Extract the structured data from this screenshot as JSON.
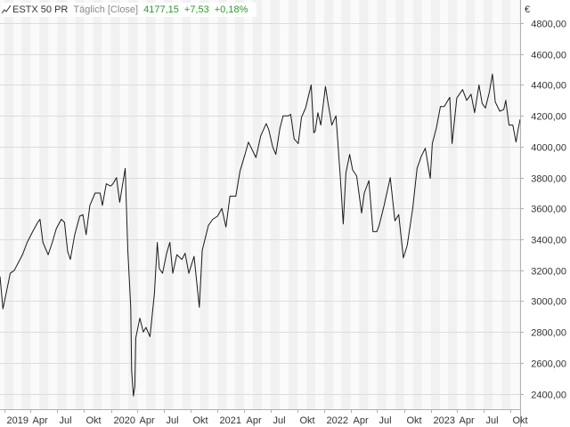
{
  "header": {
    "symbol": "ESTX 50 PR",
    "interval": "Täglich [Close]",
    "last": "4177,15",
    "change": "+7,53",
    "change_pct": "+0,18%",
    "change_color": "#2e9b2e"
  },
  "colors": {
    "line": "#1a1a1a",
    "band_light": "#fafafa",
    "band_dark": "#f1f1f1",
    "grid": "#dcdcdc",
    "frame": "#b0b0b0"
  },
  "chart_data": {
    "type": "line",
    "title": "",
    "xlabel": "",
    "ylabel": "",
    "unit": "€",
    "ylim": [
      2300,
      4950
    ],
    "xlim": [
      "2018-12-17",
      "2023-11-03"
    ],
    "yticks": [
      {
        "value": 2400,
        "label": "2400,00"
      },
      {
        "value": 2600,
        "label": "2600,00"
      },
      {
        "value": 2800,
        "label": "2800,00"
      },
      {
        "value": 3000,
        "label": "3000,00"
      },
      {
        "value": 3200,
        "label": "3200,00"
      },
      {
        "value": 3400,
        "label": "3400,00"
      },
      {
        "value": 3600,
        "label": "3600,00"
      },
      {
        "value": 3800,
        "label": "3800,00"
      },
      {
        "value": 4000,
        "label": "4000,00"
      },
      {
        "value": 4200,
        "label": "4200,00"
      },
      {
        "value": 4400,
        "label": "4400,00"
      },
      {
        "value": 4600,
        "label": "4600,00"
      },
      {
        "value": 4800,
        "label": "4800,00"
      }
    ],
    "xticks": [
      {
        "date": "2019-01-01",
        "label": "2019"
      },
      {
        "date": "2019-04-01",
        "label": "Apr"
      },
      {
        "date": "2019-07-01",
        "label": "Jul"
      },
      {
        "date": "2019-10-01",
        "label": "Okt"
      },
      {
        "date": "2020-01-01",
        "label": "2020"
      },
      {
        "date": "2020-04-01",
        "label": "Apr"
      },
      {
        "date": "2020-07-01",
        "label": "Jul"
      },
      {
        "date": "2020-10-01",
        "label": "Okt"
      },
      {
        "date": "2021-01-01",
        "label": "2021"
      },
      {
        "date": "2021-04-01",
        "label": "Apr"
      },
      {
        "date": "2021-07-01",
        "label": "Jul"
      },
      {
        "date": "2021-10-01",
        "label": "Okt"
      },
      {
        "date": "2022-01-01",
        "label": "2022"
      },
      {
        "date": "2022-04-01",
        "label": "Apr"
      },
      {
        "date": "2022-07-01",
        "label": "Jul"
      },
      {
        "date": "2022-10-01",
        "label": "Okt"
      },
      {
        "date": "2023-01-01",
        "label": "2023"
      },
      {
        "date": "2023-04-01",
        "label": "Apr"
      },
      {
        "date": "2023-07-01",
        "label": "Jul"
      },
      {
        "date": "2023-10-01",
        "label": "Okt"
      }
    ],
    "grid": true,
    "series": [
      {
        "name": "",
        "points": [
          [
            "2018-12-17",
            3160
          ],
          [
            "2018-12-27",
            2950
          ],
          [
            "2019-01-07",
            3050
          ],
          [
            "2019-01-21",
            3180
          ],
          [
            "2019-02-04",
            3200
          ],
          [
            "2019-02-18",
            3250
          ],
          [
            "2019-03-04",
            3300
          ],
          [
            "2019-03-20",
            3380
          ],
          [
            "2019-04-08",
            3450
          ],
          [
            "2019-04-25",
            3510
          ],
          [
            "2019-05-03",
            3530
          ],
          [
            "2019-05-13",
            3380
          ],
          [
            "2019-05-31",
            3300
          ],
          [
            "2019-06-14",
            3380
          ],
          [
            "2019-06-28",
            3470
          ],
          [
            "2019-07-15",
            3530
          ],
          [
            "2019-07-26",
            3510
          ],
          [
            "2019-08-06",
            3320
          ],
          [
            "2019-08-15",
            3270
          ],
          [
            "2019-08-30",
            3430
          ],
          [
            "2019-09-16",
            3550
          ],
          [
            "2019-09-27",
            3560
          ],
          [
            "2019-10-08",
            3430
          ],
          [
            "2019-10-21",
            3620
          ],
          [
            "2019-11-08",
            3700
          ],
          [
            "2019-11-25",
            3700
          ],
          [
            "2019-12-03",
            3620
          ],
          [
            "2019-12-16",
            3760
          ],
          [
            "2019-12-31",
            3745
          ],
          [
            "2020-01-08",
            3760
          ],
          [
            "2020-01-20",
            3800
          ],
          [
            "2020-01-31",
            3640
          ],
          [
            "2020-02-19",
            3860
          ],
          [
            "2020-02-28",
            3330
          ],
          [
            "2020-03-09",
            2960
          ],
          [
            "2020-03-12",
            2550
          ],
          [
            "2020-03-18",
            2385
          ],
          [
            "2020-03-23",
            2450
          ],
          [
            "2020-03-26",
            2760
          ],
          [
            "2020-04-09",
            2890
          ],
          [
            "2020-04-21",
            2800
          ],
          [
            "2020-04-30",
            2830
          ],
          [
            "2020-05-14",
            2770
          ],
          [
            "2020-05-29",
            3050
          ],
          [
            "2020-06-08",
            3380
          ],
          [
            "2020-06-15",
            3210
          ],
          [
            "2020-06-26",
            3180
          ],
          [
            "2020-07-10",
            3310
          ],
          [
            "2020-07-21",
            3380
          ],
          [
            "2020-07-31",
            3180
          ],
          [
            "2020-08-14",
            3300
          ],
          [
            "2020-08-31",
            3270
          ],
          [
            "2020-09-11",
            3310
          ],
          [
            "2020-09-24",
            3180
          ],
          [
            "2020-10-12",
            3290
          ],
          [
            "2020-10-30",
            2960
          ],
          [
            "2020-11-09",
            3330
          ],
          [
            "2020-11-30",
            3490
          ],
          [
            "2020-12-15",
            3530
          ],
          [
            "2020-12-31",
            3550
          ],
          [
            "2021-01-15",
            3600
          ],
          [
            "2021-01-29",
            3480
          ],
          [
            "2021-02-12",
            3680
          ],
          [
            "2021-03-04",
            3680
          ],
          [
            "2021-03-18",
            3840
          ],
          [
            "2021-04-06",
            3960
          ],
          [
            "2021-04-16",
            4030
          ],
          [
            "2021-05-12",
            3930
          ],
          [
            "2021-05-28",
            4070
          ],
          [
            "2021-06-16",
            4150
          ],
          [
            "2021-06-25",
            4110
          ],
          [
            "2021-07-08",
            4000
          ],
          [
            "2021-07-19",
            3950
          ],
          [
            "2021-08-02",
            4120
          ],
          [
            "2021-08-13",
            4200
          ],
          [
            "2021-08-31",
            4200
          ],
          [
            "2021-09-08",
            4210
          ],
          [
            "2021-09-20",
            4050
          ],
          [
            "2021-10-04",
            4020
          ],
          [
            "2021-10-15",
            4190
          ],
          [
            "2021-10-29",
            4250
          ],
          [
            "2021-11-17",
            4400
          ],
          [
            "2021-11-26",
            4090
          ],
          [
            "2021-12-01",
            4100
          ],
          [
            "2021-12-10",
            4220
          ],
          [
            "2021-12-20",
            4140
          ],
          [
            "2022-01-05",
            4390
          ],
          [
            "2022-01-14",
            4280
          ],
          [
            "2022-01-27",
            4140
          ],
          [
            "2022-02-10",
            4200
          ],
          [
            "2022-02-24",
            3830
          ],
          [
            "2022-03-07",
            3500
          ],
          [
            "2022-03-16",
            3830
          ],
          [
            "2022-03-29",
            3950
          ],
          [
            "2022-04-08",
            3850
          ],
          [
            "2022-04-22",
            3810
          ],
          [
            "2022-05-09",
            3570
          ],
          [
            "2022-05-18",
            3700
          ],
          [
            "2022-06-03",
            3780
          ],
          [
            "2022-06-17",
            3450
          ],
          [
            "2022-06-30",
            3450
          ],
          [
            "2022-07-08",
            3490
          ],
          [
            "2022-07-25",
            3620
          ],
          [
            "2022-08-15",
            3800
          ],
          [
            "2022-08-31",
            3520
          ],
          [
            "2022-09-13",
            3560
          ],
          [
            "2022-09-29",
            3280
          ],
          [
            "2022-10-12",
            3360
          ],
          [
            "2022-10-31",
            3600
          ],
          [
            "2022-11-15",
            3860
          ],
          [
            "2022-11-30",
            3940
          ],
          [
            "2022-12-13",
            3990
          ],
          [
            "2022-12-30",
            3795
          ],
          [
            "2023-01-06",
            4020
          ],
          [
            "2023-01-20",
            4120
          ],
          [
            "2023-02-03",
            4260
          ],
          [
            "2023-02-16",
            4260
          ],
          [
            "2023-03-07",
            4320
          ],
          [
            "2023-03-15",
            4020
          ],
          [
            "2023-03-31",
            4315
          ],
          [
            "2023-04-20",
            4370
          ],
          [
            "2023-05-04",
            4300
          ],
          [
            "2023-05-19",
            4340
          ],
          [
            "2023-05-31",
            4220
          ],
          [
            "2023-06-15",
            4400
          ],
          [
            "2023-06-26",
            4280
          ],
          [
            "2023-07-07",
            4250
          ],
          [
            "2023-07-20",
            4350
          ],
          [
            "2023-07-31",
            4470
          ],
          [
            "2023-08-10",
            4290
          ],
          [
            "2023-08-25",
            4230
          ],
          [
            "2023-09-08",
            4240
          ],
          [
            "2023-09-15",
            4300
          ],
          [
            "2023-09-26",
            4140
          ],
          [
            "2023-10-09",
            4140
          ],
          [
            "2023-10-20",
            4030
          ],
          [
            "2023-10-27",
            4110
          ],
          [
            "2023-11-03",
            4177
          ]
        ]
      }
    ]
  }
}
